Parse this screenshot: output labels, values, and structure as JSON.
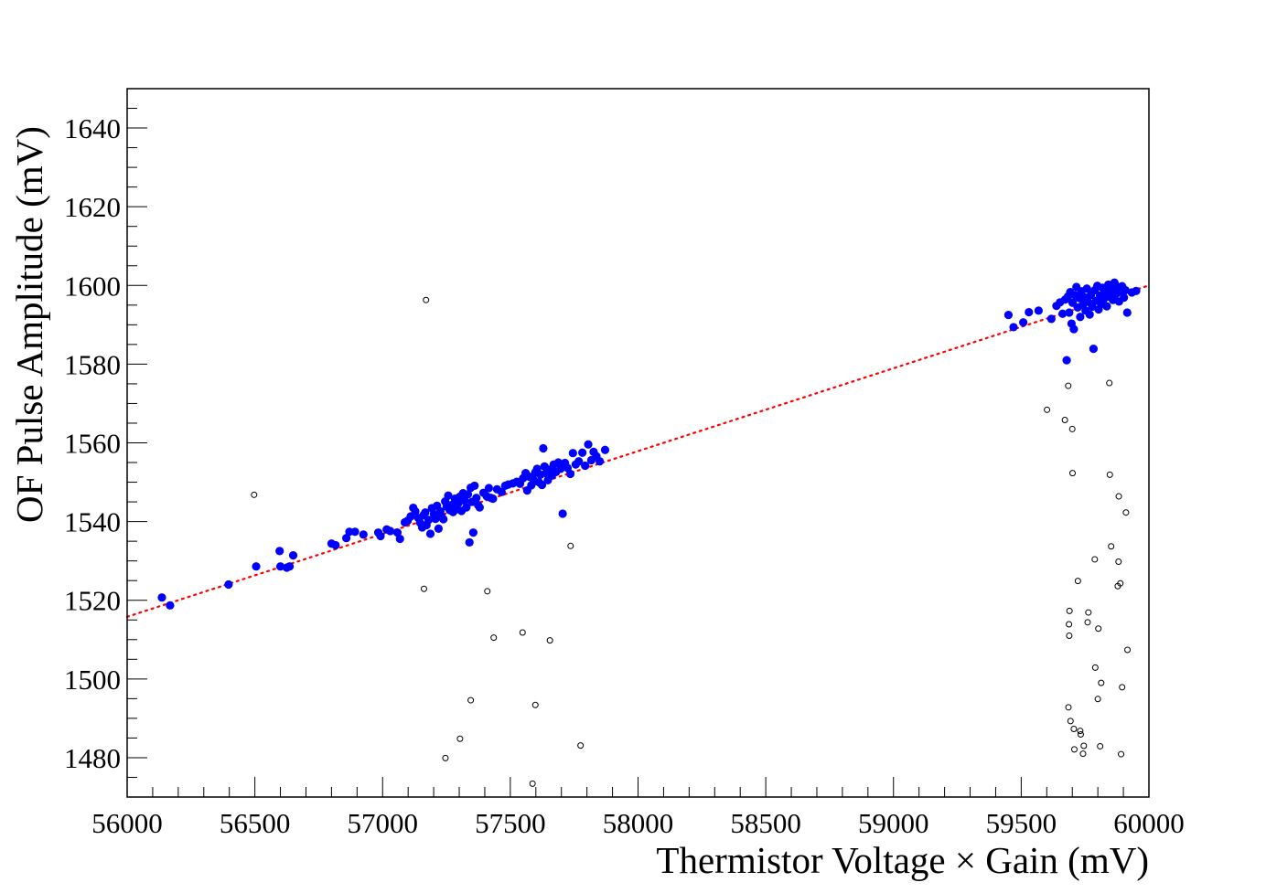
{
  "chart_data": {
    "type": "scatter",
    "title": "",
    "xlabel": "Thermistor Voltage × Gain (mV)",
    "ylabel": "OF Pulse Amplitude (mV)",
    "xlim": [
      56000,
      60000
    ],
    "ylim": [
      1470,
      1650
    ],
    "x_ticks": [
      56000,
      56500,
      57000,
      57500,
      58000,
      58500,
      59000,
      59500,
      60000
    ],
    "x_tick_labels": [
      "56000",
      "56500",
      "57000",
      "57500",
      "58000",
      "58500",
      "59000",
      "59500",
      "60000"
    ],
    "y_ticks": [
      1480,
      1500,
      1520,
      1540,
      1560,
      1580,
      1600,
      1620,
      1640
    ],
    "y_tick_labels": [
      "1480",
      "1500",
      "1520",
      "1540",
      "1560",
      "1580",
      "1600",
      "1620",
      "1640"
    ],
    "grid": false,
    "colors": {
      "selected": "#0000ff",
      "rejected": "#000000",
      "fit": "#ff0000"
    },
    "series": [
      {
        "marker": "filled-circle",
        "points": [
          [
            56136,
            1520.7
          ],
          [
            56168,
            1518.7
          ],
          [
            56397,
            1524.0
          ],
          [
            56505,
            1528.6
          ],
          [
            56597,
            1532.5
          ],
          [
            56600,
            1528.6
          ],
          [
            56625,
            1528.3
          ],
          [
            56636,
            1528.6
          ],
          [
            56650,
            1531.4
          ],
          [
            56800,
            1534.4
          ],
          [
            56816,
            1534.0
          ],
          [
            56858,
            1535.8
          ],
          [
            56870,
            1537.4
          ],
          [
            56892,
            1537.4
          ],
          [
            56925,
            1536.7
          ],
          [
            56983,
            1537.2
          ],
          [
            56992,
            1536.3
          ],
          [
            57016,
            1538.0
          ],
          [
            57030,
            1537.6
          ],
          [
            57058,
            1537.2
          ],
          [
            57068,
            1535.6
          ],
          [
            57087,
            1539.8
          ],
          [
            57098,
            1540.2
          ],
          [
            57110,
            1541.3
          ],
          [
            57120,
            1543.5
          ],
          [
            57128,
            1542.6
          ],
          [
            57140,
            1540.9
          ],
          [
            57147,
            1539.7
          ],
          [
            57155,
            1538.5
          ],
          [
            57160,
            1541.6
          ],
          [
            57167,
            1542.3
          ],
          [
            57172,
            1539.1
          ],
          [
            57180,
            1540.4
          ],
          [
            57187,
            1536.9
          ],
          [
            57193,
            1543.4
          ],
          [
            57201,
            1541.9
          ],
          [
            57207,
            1540.7
          ],
          [
            57213,
            1544.0
          ],
          [
            57219,
            1538.2
          ],
          [
            57226,
            1542.6
          ],
          [
            57232,
            1541.2
          ],
          [
            57238,
            1540.6
          ],
          [
            57245,
            1545.1
          ],
          [
            57251,
            1543.8
          ],
          [
            57257,
            1546.6
          ],
          [
            57263,
            1542.9
          ],
          [
            57270,
            1544.2
          ],
          [
            57276,
            1542.4
          ],
          [
            57283,
            1545.8
          ],
          [
            57290,
            1543.1
          ],
          [
            57296,
            1544.6
          ],
          [
            57302,
            1546.3
          ],
          [
            57309,
            1542.7
          ],
          [
            57315,
            1547.2
          ],
          [
            57321,
            1545.3
          ],
          [
            57328,
            1543.6
          ],
          [
            57334,
            1546.9
          ],
          [
            57340,
            1534.7
          ],
          [
            57345,
            1548.6
          ],
          [
            57350,
            1545.0
          ],
          [
            57355,
            1537.2
          ],
          [
            57360,
            1549.1
          ],
          [
            57367,
            1546.0
          ],
          [
            57374,
            1544.2
          ],
          [
            57380,
            1543.6
          ],
          [
            57395,
            1547.3
          ],
          [
            57408,
            1546.4
          ],
          [
            57416,
            1548.5
          ],
          [
            57424,
            1546.0
          ],
          [
            57432,
            1545.8
          ],
          [
            57448,
            1548.2
          ],
          [
            57466,
            1547.5
          ],
          [
            57480,
            1549.1
          ],
          [
            57492,
            1549.4
          ],
          [
            57510,
            1549.7
          ],
          [
            57525,
            1550.1
          ],
          [
            57538,
            1549.6
          ],
          [
            57550,
            1551.0
          ],
          [
            57560,
            1552.3
          ],
          [
            57566,
            1547.9
          ],
          [
            57574,
            1551.4
          ],
          [
            57582,
            1549.2
          ],
          [
            57590,
            1550.7
          ],
          [
            57598,
            1552.5
          ],
          [
            57605,
            1553.4
          ],
          [
            57612,
            1550.0
          ],
          [
            57618,
            1551.9
          ],
          [
            57624,
            1549.3
          ],
          [
            57629,
            1558.6
          ],
          [
            57634,
            1554.0
          ],
          [
            57640,
            1552.3
          ],
          [
            57647,
            1550.5
          ],
          [
            57655,
            1553.2
          ],
          [
            57663,
            1551.7
          ],
          [
            57670,
            1554.5
          ],
          [
            57679,
            1552.6
          ],
          [
            57688,
            1555.0
          ],
          [
            57697,
            1553.4
          ],
          [
            57705,
            1542.0
          ],
          [
            57714,
            1554.9
          ],
          [
            57724,
            1553.6
          ],
          [
            57735,
            1552.1
          ],
          [
            57745,
            1557.4
          ],
          [
            57756,
            1554.5
          ],
          [
            57768,
            1555.3
          ],
          [
            57782,
            1557.5
          ],
          [
            57793,
            1554.2
          ],
          [
            57805,
            1559.6
          ],
          [
            57817,
            1555.6
          ],
          [
            57826,
            1557.7
          ],
          [
            57837,
            1556.6
          ],
          [
            57850,
            1555.3
          ],
          [
            57871,
            1558.2
          ],
          [
            59450,
            1592.5
          ],
          [
            59470,
            1589.4
          ],
          [
            59508,
            1590.6
          ],
          [
            59530,
            1593.2
          ],
          [
            59568,
            1593.6
          ],
          [
            59618,
            1591.5
          ],
          [
            59638,
            1594.8
          ],
          [
            59652,
            1595.7
          ],
          [
            59662,
            1592.8
          ],
          [
            59672,
            1596.4
          ],
          [
            59678,
            1581.0
          ],
          [
            59683,
            1597.2
          ],
          [
            59688,
            1593.1
          ],
          [
            59692,
            1598.3
          ],
          [
            59697,
            1590.3
          ],
          [
            59701,
            1595.6
          ],
          [
            59706,
            1588.9
          ],
          [
            59711,
            1597.5
          ],
          [
            59716,
            1599.6
          ],
          [
            59721,
            1594.4
          ],
          [
            59726,
            1596.8
          ],
          [
            59731,
            1592.0
          ],
          [
            59736,
            1598.5
          ],
          [
            59741,
            1595.1
          ],
          [
            59747,
            1597.0
          ],
          [
            59752,
            1593.6
          ],
          [
            59757,
            1599.2
          ],
          [
            59762,
            1595.8
          ],
          [
            59768,
            1592.6
          ],
          [
            59773,
            1597.6
          ],
          [
            59778,
            1594.6
          ],
          [
            59783,
            1583.9
          ],
          [
            59788,
            1598.8
          ],
          [
            59793,
            1596.1
          ],
          [
            59798,
            1599.9
          ],
          [
            59803,
            1593.9
          ],
          [
            59808,
            1597.4
          ],
          [
            59813,
            1595.3
          ],
          [
            59818,
            1599.4
          ],
          [
            59824,
            1596.6
          ],
          [
            59829,
            1598.3
          ],
          [
            59835,
            1594.7
          ],
          [
            59841,
            1600.2
          ],
          [
            59847,
            1597.1
          ],
          [
            59853,
            1598.9
          ],
          [
            59859,
            1596.3
          ],
          [
            59865,
            1600.7
          ],
          [
            59871,
            1597.8
          ],
          [
            59877,
            1599.6
          ],
          [
            59883,
            1595.9
          ],
          [
            59889,
            1598.5
          ],
          [
            59895,
            1599.8
          ],
          [
            59902,
            1596.9
          ],
          [
            59908,
            1598.8
          ],
          [
            59915,
            1593.1
          ],
          [
            59933,
            1598.2
          ],
          [
            59950,
            1598.6
          ]
        ]
      },
      {
        "marker": "open-circle",
        "points": [
          [
            56497,
            1546.8
          ],
          [
            57162,
            1522.9
          ],
          [
            57170,
            1596.3
          ],
          [
            57246,
            1479.9
          ],
          [
            57303,
            1484.8
          ],
          [
            57345,
            1494.6
          ],
          [
            57410,
            1522.3
          ],
          [
            57435,
            1510.5
          ],
          [
            57548,
            1511.8
          ],
          [
            57587,
            1473.4
          ],
          [
            57598,
            1493.4
          ],
          [
            57655,
            1509.8
          ],
          [
            57736,
            1533.8
          ],
          [
            57775,
            1483.1
          ],
          [
            59601,
            1568.4
          ],
          [
            59671,
            1565.8
          ],
          [
            59684,
            1574.5
          ],
          [
            59685,
            1492.8
          ],
          [
            59687,
            1513.9
          ],
          [
            59688,
            1511.0
          ],
          [
            59689,
            1517.3
          ],
          [
            59693,
            1489.3
          ],
          [
            59700,
            1563.5
          ],
          [
            59701,
            1552.3
          ],
          [
            59706,
            1487.3
          ],
          [
            59708,
            1482.1
          ],
          [
            59722,
            1524.9
          ],
          [
            59731,
            1486.8
          ],
          [
            59733,
            1485.9
          ],
          [
            59742,
            1481.0
          ],
          [
            59745,
            1483.0
          ],
          [
            59760,
            1514.4
          ],
          [
            59763,
            1516.9
          ],
          [
            59788,
            1530.4
          ],
          [
            59790,
            1502.9
          ],
          [
            59800,
            1494.9
          ],
          [
            59802,
            1512.8
          ],
          [
            59809,
            1482.9
          ],
          [
            59813,
            1499.0
          ],
          [
            59845,
            1575.2
          ],
          [
            59847,
            1551.9
          ],
          [
            59852,
            1533.7
          ],
          [
            59878,
            1523.6
          ],
          [
            59881,
            1529.8
          ],
          [
            59882,
            1546.4
          ],
          [
            59888,
            1524.3
          ],
          [
            59891,
            1480.9
          ],
          [
            59895,
            1497.9
          ],
          [
            59910,
            1542.3
          ],
          [
            59916,
            1507.4
          ]
        ]
      }
    ],
    "fit_line": {
      "style": "dotted",
      "x": [
        56000,
        60000
      ],
      "y": [
        1515.8,
        1600.0
      ]
    }
  }
}
